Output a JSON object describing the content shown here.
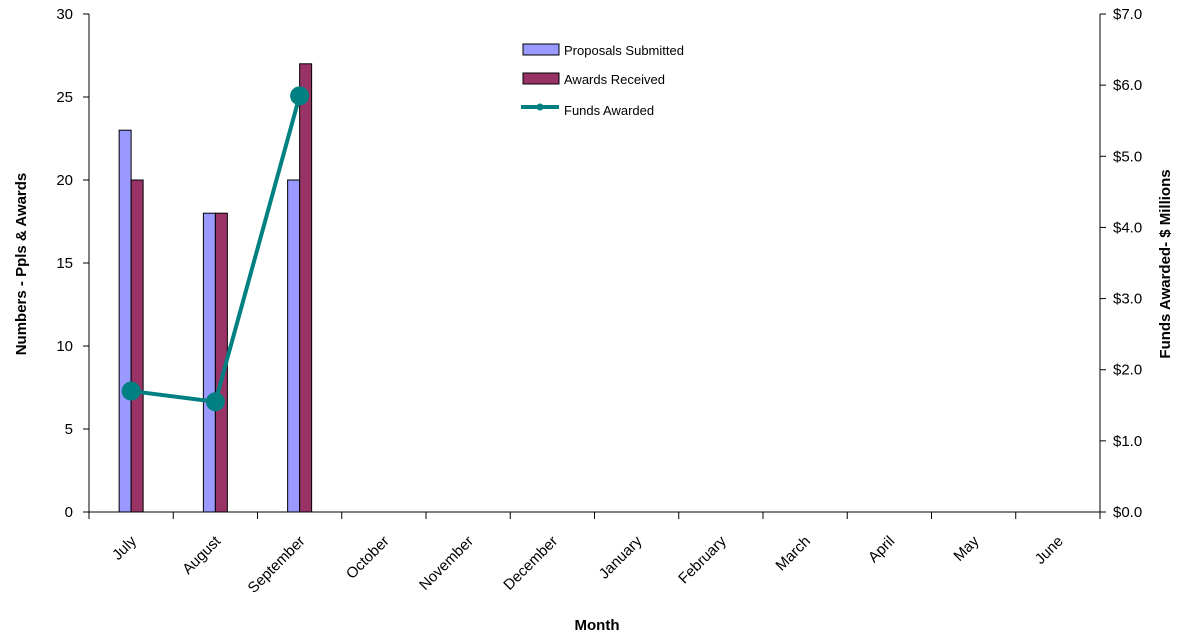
{
  "chart_data": {
    "type": "bar",
    "categories": [
      "July",
      "August",
      "September",
      "October",
      "November",
      "December",
      "January",
      "February",
      "March",
      "April",
      "May",
      "June"
    ],
    "series": [
      {
        "name": "Proposals Submitted",
        "kind": "bar",
        "axis": "left",
        "color": "#9999ff",
        "values": [
          23,
          18,
          20,
          null,
          null,
          null,
          null,
          null,
          null,
          null,
          null,
          null
        ]
      },
      {
        "name": "Awards Received",
        "kind": "bar",
        "axis": "left",
        "color": "#993366",
        "values": [
          20,
          18,
          27,
          null,
          null,
          null,
          null,
          null,
          null,
          null,
          null,
          null
        ]
      },
      {
        "name": "Funds Awarded",
        "kind": "line",
        "axis": "right",
        "color": "#008080",
        "values": [
          1.7,
          1.55,
          5.85,
          null,
          null,
          null,
          null,
          null,
          null,
          null,
          null,
          null
        ]
      }
    ],
    "xlabel": "Month",
    "ylabel": "Numbers - Ppls & Awards",
    "y2label": "Funds Awarded- $ Millions",
    "ylim": [
      0,
      30
    ],
    "y2lim": [
      0,
      7
    ],
    "yticks": [
      "0",
      "5",
      "10",
      "15",
      "20",
      "25",
      "30"
    ],
    "y2ticks": [
      "$0.0",
      "$1.0",
      "$2.0",
      "$3.0",
      "$4.0",
      "$5.0",
      "$6.0",
      "$7.0"
    ],
    "grid": false,
    "legend_position": "top-center"
  }
}
